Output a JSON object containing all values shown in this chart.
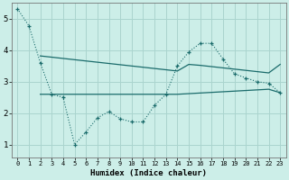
{
  "xlabel": "Humidex (Indice chaleur)",
  "bg_color": "#cceee8",
  "grid_color": "#aad4ce",
  "line_color": "#1a6b6b",
  "xlim": [
    -0.5,
    23.5
  ],
  "ylim": [
    0.6,
    5.5
  ],
  "yticks": [
    1,
    2,
    3,
    4,
    5
  ],
  "xticks": [
    0,
    1,
    2,
    3,
    4,
    5,
    6,
    7,
    8,
    9,
    10,
    11,
    12,
    13,
    14,
    15,
    16,
    17,
    18,
    19,
    20,
    21,
    22,
    23
  ],
  "line1_x": [
    0,
    1,
    2,
    3,
    4,
    5,
    6,
    7,
    8,
    9,
    10,
    11,
    12,
    13,
    14,
    15,
    16,
    17,
    18,
    19,
    20,
    21,
    22,
    23
  ],
  "line1_y": [
    5.32,
    4.78,
    3.6,
    2.6,
    2.5,
    1.0,
    1.4,
    1.85,
    2.05,
    1.82,
    1.72,
    1.72,
    2.25,
    2.6,
    3.5,
    3.95,
    4.22,
    4.22,
    3.72,
    3.25,
    3.12,
    3.0,
    2.95,
    2.65
  ],
  "line2_x": [
    2,
    3,
    4,
    5,
    6,
    7,
    8,
    9,
    10,
    11,
    12,
    13,
    14,
    15,
    16,
    17,
    18,
    19,
    20,
    21,
    22,
    23
  ],
  "line2_y": [
    3.82,
    3.78,
    3.74,
    3.7,
    3.66,
    3.62,
    3.58,
    3.54,
    3.5,
    3.46,
    3.42,
    3.38,
    3.34,
    3.55,
    3.52,
    3.48,
    3.44,
    3.4,
    3.36,
    3.32,
    3.28,
    3.55
  ],
  "line3_x": [
    2,
    3,
    4,
    5,
    6,
    7,
    8,
    9,
    10,
    11,
    12,
    13,
    14,
    15,
    16,
    17,
    18,
    19,
    20,
    21,
    22,
    23
  ],
  "line3_y": [
    2.6,
    2.6,
    2.6,
    2.6,
    2.6,
    2.6,
    2.6,
    2.6,
    2.6,
    2.6,
    2.6,
    2.6,
    2.6,
    2.62,
    2.64,
    2.66,
    2.68,
    2.7,
    2.72,
    2.74,
    2.76,
    2.65
  ]
}
